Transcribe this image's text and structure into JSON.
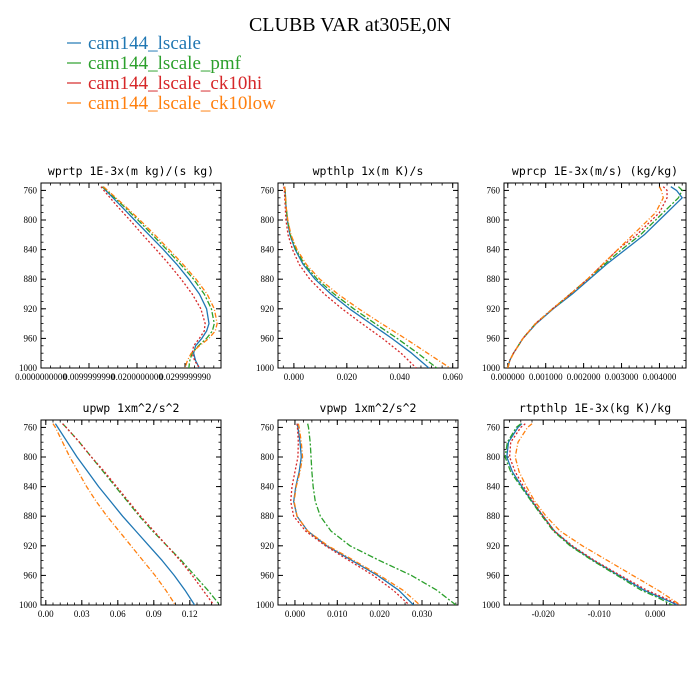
{
  "figure": {
    "title": "CLUBB VAR at305E,0N",
    "legend": [
      {
        "label": "cam144_lscale",
        "color": "#1f77b4"
      },
      {
        "label": "cam144_lscale_pmf",
        "color": "#2ca02c"
      },
      {
        "label": "cam144_lscale_ck10hi",
        "color": "#d62728"
      },
      {
        "label": "cam144_lscale_ck10low",
        "color": "#ff7f0e"
      }
    ]
  },
  "chart_data": [
    {
      "type": "line",
      "title": "wprtp  1E-3x(m kg)/(s kg)",
      "xlim": [
        0,
        0.0375
      ],
      "ylim": [
        1000,
        750
      ],
      "y_reversed": true,
      "xticks": [
        {
          "v": 0,
          "label": "0.0000000000"
        },
        {
          "v": 0.01,
          "label": "0.0099999990"
        },
        {
          "v": 0.02,
          "label": "0.0200000000"
        },
        {
          "v": 0.03,
          "label": "0.0299999990"
        }
      ],
      "yticks": [
        760,
        800,
        840,
        880,
        920,
        960,
        1000
      ],
      "y": [
        755,
        760,
        780,
        800,
        820,
        840,
        860,
        880,
        900,
        920,
        940,
        950,
        960,
        970,
        980,
        990,
        1000
      ],
      "series": [
        {
          "name": "cam144_lscale",
          "x": [
            0.0128,
            0.0135,
            0.0165,
            0.0195,
            0.0225,
            0.0255,
            0.0283,
            0.0308,
            0.033,
            0.0345,
            0.035,
            0.0345,
            0.0335,
            0.0322,
            0.0318,
            0.0322,
            0.033
          ]
        },
        {
          "name": "cam144_lscale_pmf",
          "x": [
            0.0128,
            0.0137,
            0.017,
            0.0202,
            0.0232,
            0.0262,
            0.0291,
            0.0318,
            0.034,
            0.0355,
            0.0361,
            0.0357,
            0.0345,
            0.0328,
            0.0315,
            0.031,
            0.0308
          ]
        },
        {
          "name": "cam144_lscale_ck10hi",
          "x": [
            0.0125,
            0.0131,
            0.0157,
            0.0185,
            0.0212,
            0.024,
            0.0267,
            0.0292,
            0.0315,
            0.0333,
            0.0342,
            0.034,
            0.033,
            0.0318,
            0.0315,
            0.032,
            0.033
          ]
        },
        {
          "name": "cam144_lscale_ck10low",
          "x": [
            0.013,
            0.0139,
            0.0173,
            0.0206,
            0.0237,
            0.0267,
            0.0296,
            0.0323,
            0.0346,
            0.0361,
            0.0367,
            0.0363,
            0.035,
            0.033,
            0.0313,
            0.0305,
            0.03
          ]
        }
      ]
    },
    {
      "type": "line",
      "title": "wpthlp  1x(m K)/s",
      "xlim": [
        -0.006,
        0.062
      ],
      "ylim": [
        1000,
        750
      ],
      "y_reversed": true,
      "xticks": [
        {
          "v": 0,
          "label": "0.000"
        },
        {
          "v": 0.02,
          "label": "0.020"
        },
        {
          "v": 0.04,
          "label": "0.040"
        },
        {
          "v": 0.06,
          "label": "0.060"
        }
      ],
      "yticks": [
        760,
        800,
        840,
        880,
        920,
        960,
        1000
      ],
      "y": [
        755,
        760,
        780,
        800,
        820,
        840,
        860,
        880,
        900,
        920,
        940,
        960,
        980,
        1000
      ],
      "series": [
        {
          "name": "cam144_lscale",
          "x": [
            -0.0035,
            -0.0033,
            -0.003,
            -0.0025,
            -0.0015,
            0.0005,
            0.0035,
            0.008,
            0.014,
            0.021,
            0.029,
            0.037,
            0.0445,
            0.051
          ]
        },
        {
          "name": "cam144_lscale_pmf",
          "x": [
            -0.0035,
            -0.0033,
            -0.003,
            -0.0024,
            -0.0013,
            0.0008,
            0.004,
            0.0088,
            0.0152,
            0.0226,
            0.0307,
            0.039,
            0.0468,
            0.054
          ]
        },
        {
          "name": "cam144_lscale_ck10hi",
          "x": [
            -0.0038,
            -0.0036,
            -0.0033,
            -0.003,
            -0.0022,
            -0.0005,
            0.002,
            0.006,
            0.0115,
            0.0182,
            0.0257,
            0.0335,
            0.0405,
            0.0462
          ]
        },
        {
          "name": "cam144_lscale_ck10low",
          "x": [
            -0.0035,
            -0.0033,
            -0.003,
            -0.0023,
            -0.0011,
            0.0012,
            0.0047,
            0.0098,
            0.0166,
            0.0245,
            0.0331,
            0.042,
            0.0505,
            0.059
          ]
        }
      ]
    },
    {
      "type": "line",
      "title": "wprcp  1E-3x(m/s) (kg/kg)",
      "xlim": [
        -0.0001,
        0.0047
      ],
      "ylim": [
        1000,
        750
      ],
      "y_reversed": true,
      "xticks": [
        {
          "v": 0,
          "label": "0.000000"
        },
        {
          "v": 0.001,
          "label": "0.001000"
        },
        {
          "v": 0.002,
          "label": "0.002000"
        },
        {
          "v": 0.003,
          "label": "0.003000"
        },
        {
          "v": 0.004,
          "label": "0.004000"
        }
      ],
      "yticks": [
        760,
        800,
        840,
        880,
        920,
        960,
        1000
      ],
      "y": [
        755,
        760,
        770,
        780,
        790,
        800,
        820,
        840,
        860,
        880,
        900,
        920,
        940,
        960,
        980,
        990,
        1000
      ],
      "series": [
        {
          "name": "cam144_lscale",
          "x": [
            0.0043,
            0.00445,
            0.0046,
            0.0044,
            0.0042,
            0.004,
            0.0036,
            0.0031,
            0.0026,
            0.00215,
            0.0017,
            0.0012,
            0.00075,
            0.0004,
            0.00015,
            5e-05,
            0.0
          ]
        },
        {
          "name": "cam144_lscale_pmf",
          "x": [
            0.0045,
            0.0046,
            0.0045,
            0.0043,
            0.0041,
            0.0039,
            0.0035,
            0.003,
            0.00255,
            0.0021,
            0.00165,
            0.00118,
            0.00073,
            0.0004,
            0.00015,
            5e-05,
            0.0
          ]
        },
        {
          "name": "cam144_lscale_ck10hi",
          "x": [
            0.0041,
            0.0042,
            0.0042,
            0.0041,
            0.004,
            0.0038,
            0.0034,
            0.0029,
            0.0025,
            0.0021,
            0.00165,
            0.00118,
            0.00073,
            0.0004,
            0.00015,
            5e-05,
            0.0
          ]
        },
        {
          "name": "cam144_lscale_ck10low",
          "x": [
            0.004,
            0.00405,
            0.0041,
            0.004,
            0.0039,
            0.0037,
            0.0033,
            0.0029,
            0.0025,
            0.0021,
            0.00165,
            0.00118,
            0.00073,
            0.0004,
            0.00015,
            5e-05,
            0.0
          ]
        }
      ]
    },
    {
      "type": "line",
      "title": "upwp  1xm^2/s^2",
      "xlim": [
        -0.004,
        0.146
      ],
      "ylim": [
        1000,
        750
      ],
      "y_reversed": true,
      "xticks": [
        {
          "v": 0,
          "label": "0.00"
        },
        {
          "v": 0.03,
          "label": "0.03"
        },
        {
          "v": 0.06,
          "label": "0.06"
        },
        {
          "v": 0.09,
          "label": "0.09"
        },
        {
          "v": 0.12,
          "label": "0.12"
        }
      ],
      "yticks": [
        760,
        800,
        840,
        880,
        920,
        960,
        1000
      ],
      "y": [
        755,
        760,
        780,
        800,
        820,
        840,
        860,
        880,
        900,
        920,
        940,
        960,
        980,
        1000
      ],
      "series": [
        {
          "name": "cam144_lscale",
          "x": [
            0.008,
            0.01,
            0.018,
            0.026,
            0.035,
            0.044,
            0.054,
            0.064,
            0.075,
            0.086,
            0.097,
            0.107,
            0.116,
            0.124
          ]
        },
        {
          "name": "cam144_lscale_pmf",
          "x": [
            0.014,
            0.017,
            0.028,
            0.038,
            0.048,
            0.058,
            0.068,
            0.078,
            0.089,
            0.101,
            0.113,
            0.124,
            0.135,
            0.145
          ]
        },
        {
          "name": "cam144_lscale_ck10hi",
          "x": [
            0.014,
            0.017,
            0.028,
            0.038,
            0.049,
            0.059,
            0.069,
            0.079,
            0.09,
            0.101,
            0.112,
            0.122,
            0.131,
            0.14
          ]
        },
        {
          "name": "cam144_lscale_ck10low",
          "x": [
            0.006,
            0.008,
            0.014,
            0.02,
            0.027,
            0.034,
            0.042,
            0.051,
            0.061,
            0.071,
            0.081,
            0.091,
            0.1,
            0.108
          ]
        }
      ]
    },
    {
      "type": "line",
      "title": "vpwp  1xm^2/s^2",
      "xlim": [
        -0.004,
        0.0385
      ],
      "ylim": [
        1000,
        750
      ],
      "y_reversed": true,
      "xticks": [
        {
          "v": 0,
          "label": "0.000"
        },
        {
          "v": 0.01,
          "label": "0.010"
        },
        {
          "v": 0.02,
          "label": "0.020"
        },
        {
          "v": 0.03,
          "label": "0.030"
        }
      ],
      "yticks": [
        760,
        800,
        840,
        880,
        920,
        960,
        1000
      ],
      "y": [
        755,
        760,
        780,
        800,
        820,
        840,
        860,
        880,
        900,
        920,
        940,
        960,
        980,
        1000
      ],
      "series": [
        {
          "name": "cam144_lscale",
          "x": [
            0.0005,
            0.0007,
            0.0012,
            0.0015,
            0.001,
            0.0002,
            -0.0003,
            0.0005,
            0.003,
            0.0075,
            0.0135,
            0.0195,
            0.0245,
            0.028
          ]
        },
        {
          "name": "cam144_lscale_pmf",
          "x": [
            0.003,
            0.0032,
            0.0036,
            0.0038,
            0.004,
            0.0043,
            0.0048,
            0.006,
            0.0085,
            0.013,
            0.02,
            0.0275,
            0.0335,
            0.038
          ]
        },
        {
          "name": "cam144_lscale_ck10hi",
          "x": [
            0.0005,
            0.0006,
            0.0008,
            0.0007,
            0.0,
            -0.0007,
            -0.001,
            -0.0003,
            0.0025,
            0.0072,
            0.0128,
            0.0185,
            0.0232,
            0.027
          ]
        },
        {
          "name": "cam144_lscale_ck10low",
          "x": [
            0.0008,
            0.001,
            0.0015,
            0.0018,
            0.0012,
            0.0003,
            -0.0002,
            0.0005,
            0.003,
            0.0078,
            0.014,
            0.02,
            0.0255,
            0.0295
          ]
        }
      ]
    },
    {
      "type": "line",
      "title": "rtpthlp  1E-3x(kg K)/kg",
      "xlim": [
        -0.027,
        0.0055
      ],
      "ylim": [
        1000,
        750
      ],
      "y_reversed": true,
      "xticks": [
        {
          "v": -0.02,
          "label": "-0.020"
        },
        {
          "v": -0.01,
          "label": "-0.010"
        },
        {
          "v": 0,
          "label": "0.000"
        }
      ],
      "yticks": [
        760,
        800,
        840,
        880,
        920,
        960,
        1000
      ],
      "y": [
        755,
        760,
        780,
        800,
        820,
        840,
        860,
        880,
        900,
        920,
        940,
        960,
        980,
        990,
        1000
      ],
      "series": [
        {
          "name": "cam144_lscale",
          "x": [
            -0.0238,
            -0.0245,
            -0.0262,
            -0.0265,
            -0.0255,
            -0.0238,
            -0.022,
            -0.02,
            -0.018,
            -0.015,
            -0.011,
            -0.0065,
            -0.002,
            0.001,
            0.004
          ]
        },
        {
          "name": "cam144_lscale_pmf",
          "x": [
            -0.024,
            -0.0248,
            -0.0264,
            -0.0268,
            -0.0258,
            -0.024,
            -0.0221,
            -0.0202,
            -0.0182,
            -0.0152,
            -0.0112,
            -0.0068,
            -0.0025,
            0.0005,
            0.003
          ]
        },
        {
          "name": "cam144_lscale_ck10hi",
          "x": [
            -0.0232,
            -0.024,
            -0.0258,
            -0.026,
            -0.025,
            -0.0235,
            -0.0218,
            -0.02,
            -0.018,
            -0.0148,
            -0.0108,
            -0.0062,
            -0.0015,
            0.0015,
            0.0045
          ]
        },
        {
          "name": "cam144_lscale_ck10low",
          "x": [
            -0.022,
            -0.0228,
            -0.0245,
            -0.025,
            -0.0243,
            -0.023,
            -0.0215,
            -0.0195,
            -0.017,
            -0.013,
            -0.0085,
            -0.004,
            0.0005,
            0.0025,
            0.0045
          ]
        }
      ]
    }
  ]
}
